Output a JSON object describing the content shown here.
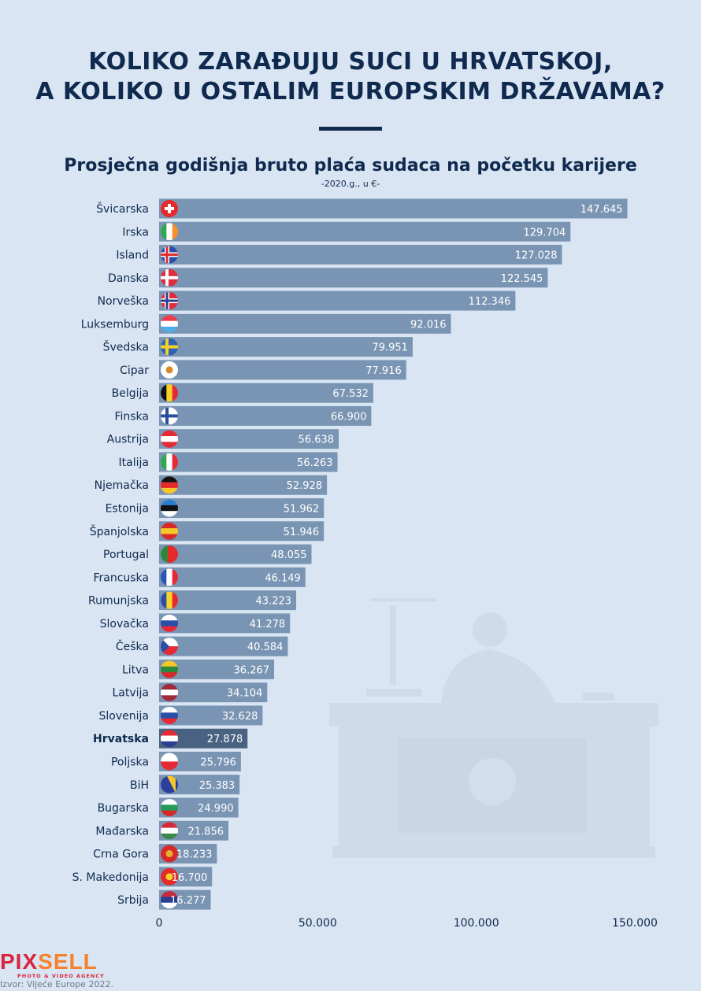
{
  "header": {
    "title_line1": "KOLIKO ZARAĐUJU SUCI U HRVATSKOJ,",
    "title_line2": "A KOLIKO U OSTALIM EUROPSKIM DRŽAVAMA?"
  },
  "footer": {
    "logo_part1": "PIX",
    "logo_part2": "SELL",
    "logo_tagline": "PHOTO & VIDEO AGENCY",
    "source": "Izvor: Vijeće Europe 2022."
  },
  "colors": {
    "background": "#d9e5f3",
    "bar": "#7a95b3",
    "highlight_bar": "#4a6282",
    "text": "#0f2a4e",
    "bar_label": "#ffffff"
  },
  "chart_data": {
    "type": "bar",
    "orientation": "horizontal",
    "title": "Prosječna godišnja bruto plaća sudaca na početku karijere",
    "subtitle": "-2020.g., u €-",
    "xlim": [
      0,
      150000
    ],
    "xticks": [
      0,
      50000,
      100000,
      150000
    ],
    "xtick_labels": [
      "0",
      "50.000",
      "100.000",
      "150.000"
    ],
    "grid": false,
    "highlight": "Hrvatska",
    "categories": [
      "Švicarska",
      "Irska",
      "Island",
      "Danska",
      "Norveška",
      "Luksemburg",
      "Švedska",
      "Cipar",
      "Belgija",
      "Finska",
      "Austrija",
      "Italija",
      "Njemačka",
      "Estonija",
      "Španjolska",
      "Portugal",
      "Francuska",
      "Rumunjska",
      "Slovačka",
      "Češka",
      "Litva",
      "Latvija",
      "Slovenija",
      "Hrvatska",
      "Poljska",
      "BiH",
      "Bugarska",
      "Mađarska",
      "Crna Gora",
      "S. Makedonija",
      "Srbija"
    ],
    "values": [
      147645,
      129704,
      127028,
      122545,
      112346,
      92016,
      79951,
      77916,
      67532,
      66900,
      56638,
      56263,
      52928,
      51962,
      51946,
      48055,
      46149,
      43223,
      41278,
      40584,
      36267,
      34104,
      32628,
      27878,
      25796,
      25383,
      24990,
      21856,
      18233,
      16700,
      16277
    ],
    "value_labels": [
      "147.645",
      "129.704",
      "127.028",
      "122.545",
      "112.346",
      "92.016",
      "79.951",
      "77.916",
      "67.532",
      "66.900",
      "56.638",
      "56.263",
      "52.928",
      "51.962",
      "51.946",
      "48.055",
      "46.149",
      "43.223",
      "41.278",
      "40.584",
      "36.267",
      "34.104",
      "32.628",
      "27.878",
      "25.796",
      "25.383",
      "24.990",
      "21.856",
      "18.233",
      "16.700",
      "16.277"
    ],
    "flags": [
      {
        "icon": "flag-switzerland-icon",
        "kind": "plus",
        "colors": [
          "#e52a2a",
          "#ffffff"
        ]
      },
      {
        "icon": "flag-ireland-icon",
        "kind": "v",
        "colors": [
          "#2fa84f",
          "#ffffff",
          "#f7902a"
        ]
      },
      {
        "icon": "flag-iceland-icon",
        "kind": "nordic2",
        "colors": [
          "#2d4fa8",
          "#ffffff",
          "#e02b2b"
        ]
      },
      {
        "icon": "flag-denmark-icon",
        "kind": "nordic",
        "colors": [
          "#e02b3a",
          "#ffffff"
        ]
      },
      {
        "icon": "flag-norway-icon",
        "kind": "nordic2",
        "colors": [
          "#e02b3a",
          "#ffffff",
          "#2d3f8f"
        ]
      },
      {
        "icon": "flag-luxembourg-icon",
        "kind": "h",
        "colors": [
          "#ef3b48",
          "#ffffff",
          "#4cb0e6"
        ]
      },
      {
        "icon": "flag-sweden-icon",
        "kind": "nordic",
        "colors": [
          "#2c63b2",
          "#f7cf2a"
        ]
      },
      {
        "icon": "flag-cyprus-icon",
        "kind": "dot",
        "colors": [
          "#ffffff",
          "#d98a2b"
        ]
      },
      {
        "icon": "flag-belgium-icon",
        "kind": "v",
        "colors": [
          "#111111",
          "#f7d22a",
          "#e52a36"
        ]
      },
      {
        "icon": "flag-finland-icon",
        "kind": "nordic",
        "colors": [
          "#ffffff",
          "#2a4f9e"
        ]
      },
      {
        "icon": "flag-austria-icon",
        "kind": "h",
        "colors": [
          "#e52a36",
          "#ffffff",
          "#e52a36"
        ]
      },
      {
        "icon": "flag-italy-icon",
        "kind": "v",
        "colors": [
          "#2fa84f",
          "#ffffff",
          "#e52a36"
        ]
      },
      {
        "icon": "flag-germany-icon",
        "kind": "h",
        "colors": [
          "#111111",
          "#e52a2a",
          "#f7c62a"
        ]
      },
      {
        "icon": "flag-estonia-icon",
        "kind": "h",
        "colors": [
          "#2b7cd3",
          "#111111",
          "#ffffff"
        ]
      },
      {
        "icon": "flag-spain-icon",
        "kind": "h3",
        "colors": [
          "#d62a2a",
          "#f7c62a",
          "#d62a2a"
        ]
      },
      {
        "icon": "flag-portugal-icon",
        "kind": "v2",
        "colors": [
          "#2a8a3a",
          "#e52a2a"
        ]
      },
      {
        "icon": "flag-france-icon",
        "kind": "v",
        "colors": [
          "#2a55b8",
          "#ffffff",
          "#e52a36"
        ]
      },
      {
        "icon": "flag-romania-icon",
        "kind": "v",
        "colors": [
          "#2a4fa8",
          "#f7d22a",
          "#e52a2a"
        ]
      },
      {
        "icon": "flag-slovakia-icon",
        "kind": "h",
        "colors": [
          "#ffffff",
          "#2a4fa8",
          "#e52a36"
        ]
      },
      {
        "icon": "flag-czechia-icon",
        "kind": "tri",
        "colors": [
          "#ffffff",
          "#e52a36",
          "#2a4fa8"
        ]
      },
      {
        "icon": "flag-lithuania-icon",
        "kind": "h",
        "colors": [
          "#f7c62a",
          "#2a8a3a",
          "#d62a2a"
        ]
      },
      {
        "icon": "flag-latvia-icon",
        "kind": "h3",
        "colors": [
          "#9e2a3a",
          "#ffffff",
          "#9e2a3a"
        ]
      },
      {
        "icon": "flag-slovenia-icon",
        "kind": "h",
        "colors": [
          "#ffffff",
          "#2a4fa8",
          "#e52a36"
        ]
      },
      {
        "icon": "flag-croatia-icon",
        "kind": "h",
        "colors": [
          "#e52a36",
          "#ffffff",
          "#2a3f8f"
        ]
      },
      {
        "icon": "flag-poland-icon",
        "kind": "h2",
        "colors": [
          "#ffffff",
          "#e52a36"
        ]
      },
      {
        "icon": "flag-bosnia-icon",
        "kind": "bih",
        "colors": [
          "#2a3f9e",
          "#f7c62a"
        ]
      },
      {
        "icon": "flag-bulgaria-icon",
        "kind": "h",
        "colors": [
          "#ffffff",
          "#2a9a5a",
          "#d62a2a"
        ]
      },
      {
        "icon": "flag-hungary-icon",
        "kind": "h",
        "colors": [
          "#d62a3a",
          "#ffffff",
          "#3a8a4a"
        ]
      },
      {
        "icon": "flag-montenegro-icon",
        "kind": "dot",
        "colors": [
          "#d62a2a",
          "#e5b02a"
        ]
      },
      {
        "icon": "flag-north-macedonia-icon",
        "kind": "dot",
        "colors": [
          "#e52a2a",
          "#f7d22a"
        ]
      },
      {
        "icon": "flag-serbia-icon",
        "kind": "h",
        "colors": [
          "#c62a3a",
          "#2a3f8f",
          "#ffffff"
        ]
      }
    ]
  }
}
